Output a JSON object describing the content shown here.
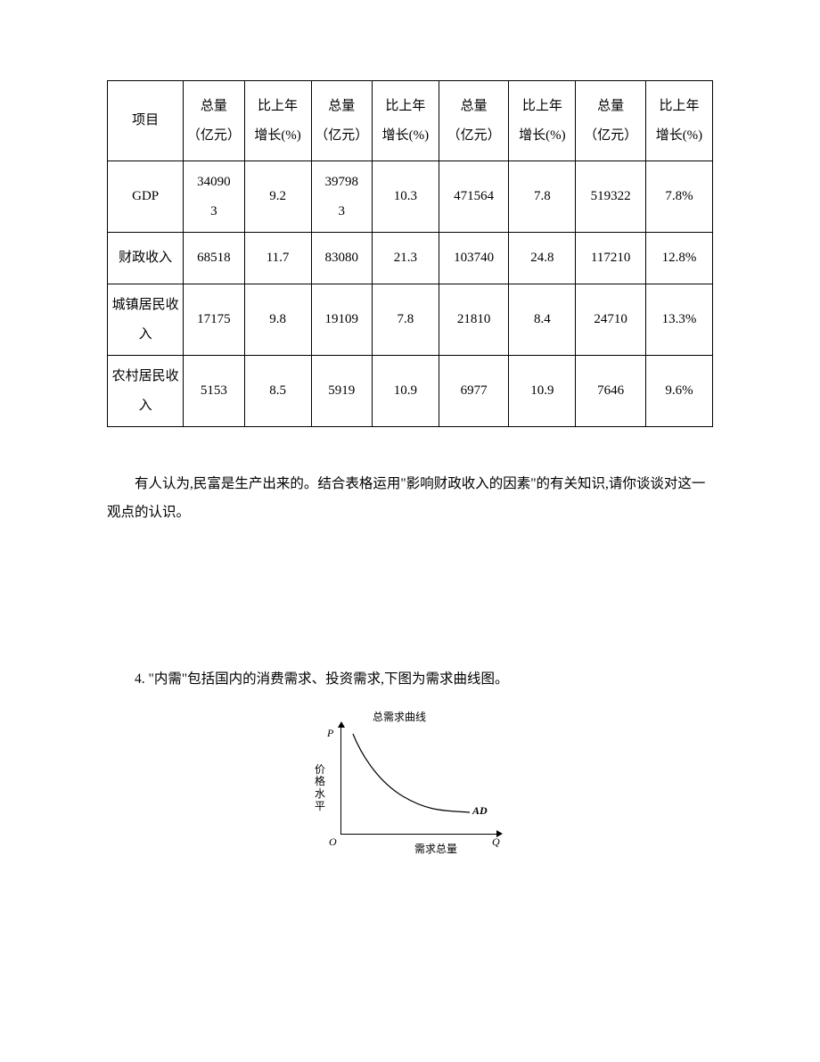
{
  "table": {
    "border_color": "#000000",
    "font_size": 15,
    "text_color": "#000000",
    "columns": [
      "项目",
      "总量\n（亿元）",
      "比上年\n增长(%)",
      "总量\n（亿元）",
      "比上年\n增长(%)",
      "总量\n（亿元）",
      "比上年\n增长(%)",
      "总量\n（亿元）",
      "比上年\n增长(%)"
    ],
    "header": {
      "item": "项目",
      "total": "总量",
      "total_unit": "（亿元）",
      "growth": "比上年",
      "growth_unit": "增长(%)"
    },
    "rows": [
      {
        "label": "GDP",
        "cells": [
          "340903",
          "9.2",
          "397983",
          "10.3",
          "471564",
          "7.8",
          "519322",
          "7.8%"
        ]
      },
      {
        "label": "财政收入",
        "cells": [
          "68518",
          "11.7",
          "83080",
          "21.3",
          "103740",
          "24.8",
          "117210",
          "12.8%"
        ]
      },
      {
        "label": "城镇居民收入",
        "cells": [
          "17175",
          "9.8",
          "19109",
          "7.8",
          "21810",
          "8.4",
          "24710",
          "13.3%"
        ]
      },
      {
        "label": "农村居民收入",
        "cells": [
          "5153",
          "8.5",
          "5919",
          "10.9",
          "6977",
          "10.9",
          "7646",
          "9.6%"
        ]
      }
    ]
  },
  "question3_text": "有人认为,民富是生产出来的。结合表格运用\"影响财政收入的因素\"的有关知识,请你谈谈对这一观点的认识。",
  "question4_text": "4. \"内需\"包括国内的消费需求、投资需求,下图为需求曲线图。",
  "chart": {
    "type": "line",
    "title": "总需求曲线",
    "title_fontsize": 12,
    "x_label": "需求总量",
    "y_label": "价格水平",
    "label_fontsize": 12,
    "axis_p": "P",
    "axis_q": "Q",
    "origin": "O",
    "curve_label": "AD",
    "curve_color": "#000000",
    "curve_width": 1.2,
    "axis_color": "#000000",
    "background_color": "#ffffff",
    "xlim": [
      0,
      178
    ],
    "ylim": [
      0,
      122
    ],
    "curve_points": [
      [
        14,
        10
      ],
      [
        25,
        26
      ],
      [
        38,
        42
      ],
      [
        55,
        58
      ],
      [
        78,
        74
      ],
      [
        108,
        88
      ],
      [
        145,
        98
      ]
    ]
  }
}
